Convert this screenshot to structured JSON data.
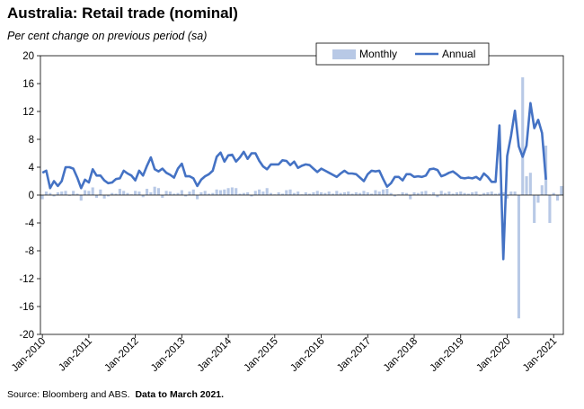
{
  "title": "Australia: Retail trade (nominal)",
  "subtitle": "Per cent change on previous period (sa)",
  "source_text": "Source: Bloomberg and ABS.",
  "source_note": "Data to March 2021.",
  "colors": {
    "monthly": "#b8c9e6",
    "annual": "#4472c4",
    "axis": "#000000",
    "grid": "#d9d9d9"
  },
  "chart_data": {
    "type": "bar+line",
    "ylim": [
      -20,
      20
    ],
    "yticks": [
      20,
      16,
      12,
      8,
      4,
      0,
      -4,
      -8,
      -12,
      -16,
      -20
    ],
    "x_start": "Jan-2010",
    "x_end": "Mar-2021",
    "xticks": [
      "Jan-2010",
      "Jan-2011",
      "Jan-2012",
      "Jan-2013",
      "Jan-2014",
      "Jan-2015",
      "Jan-2016",
      "Jan-2017",
      "Jan-2018",
      "Jan-2019",
      "Jan-2020",
      "Jan-2021"
    ],
    "legend": {
      "position": "top-right",
      "entries": [
        "Monthly",
        "Annual"
      ]
    },
    "series": [
      {
        "name": "Monthly",
        "type": "bar",
        "values": [
          -0.6,
          0.5,
          0.3,
          -0.2,
          0.4,
          0.5,
          0.6,
          -0.1,
          0.6,
          0.2,
          -0.8,
          0.7,
          0.6,
          1.1,
          -0.4,
          0.8,
          -0.5,
          -0.2,
          0.3,
          0.2,
          0.9,
          0.6,
          0.3,
          0.1,
          0.6,
          0.5,
          -0.3,
          0.9,
          0.4,
          1.2,
          1.0,
          -0.4,
          0.6,
          0.5,
          0.2,
          0.3,
          0.7,
          -0.2,
          0.5,
          0.8,
          -0.6,
          0.4,
          0.6,
          0.2,
          0.3,
          0.8,
          0.7,
          0.8,
          1.0,
          1.1,
          1.0,
          0.2,
          0.3,
          0.4,
          -0.2,
          0.6,
          0.8,
          0.5,
          1.0,
          0.3,
          0.1,
          0.4,
          0.2,
          0.7,
          0.8,
          0.3,
          0.5,
          0.1,
          0.4,
          0.2,
          0.4,
          0.6,
          0.4,
          0.3,
          0.5,
          0.2,
          0.6,
          0.3,
          0.4,
          0.5,
          0.2,
          0.4,
          0.3,
          0.6,
          0.4,
          0.2,
          0.7,
          0.5,
          0.8,
          0.9,
          0.3,
          -0.2,
          0.1,
          0.4,
          0.3,
          -0.6,
          0.4,
          0.3,
          0.5,
          0.6,
          0.1,
          0.4,
          -0.3,
          0.6,
          0.3,
          0.5,
          0.2,
          0.4,
          0.5,
          0.3,
          0.2,
          0.4,
          0.5,
          -0.1,
          0.3,
          0.4,
          0.5,
          0.2,
          0.3,
          0.4,
          -0.5,
          0.5,
          0.5,
          -17.7,
          16.9,
          2.7,
          3.2,
          -4.0,
          -1.1,
          1.4,
          7.1,
          -4.0,
          0.3,
          -0.8,
          1.3
        ]
      },
      {
        "name": "Annual",
        "type": "line",
        "values": [
          3.2,
          3.5,
          1.0,
          2.0,
          1.3,
          2.0,
          4.0,
          4.0,
          3.8,
          2.5,
          1.0,
          2.2,
          1.8,
          3.7,
          2.8,
          2.8,
          2.1,
          1.7,
          1.8,
          2.3,
          2.4,
          3.5,
          3.1,
          2.8,
          2.1,
          3.5,
          2.8,
          4.2,
          5.4,
          3.7,
          3.4,
          3.8,
          3.2,
          2.9,
          2.5,
          3.8,
          4.5,
          2.7,
          2.7,
          2.4,
          1.3,
          2.2,
          2.7,
          3.0,
          3.5,
          5.5,
          6.1,
          4.8,
          5.7,
          5.8,
          4.8,
          5.4,
          6.2,
          5.2,
          6.0,
          6.0,
          4.9,
          4.1,
          3.7,
          4.4,
          4.4,
          4.4,
          5.0,
          4.9,
          4.3,
          4.8,
          3.9,
          4.2,
          4.4,
          4.3,
          3.8,
          3.3,
          3.8,
          3.5,
          3.2,
          2.9,
          2.6,
          3.1,
          3.5,
          3.1,
          3.1,
          3.0,
          2.5,
          2.0,
          3.0,
          3.5,
          3.4,
          3.5,
          2.3,
          1.2,
          1.7,
          2.6,
          2.6,
          2.1,
          3.0,
          3.0,
          2.6,
          2.7,
          2.6,
          2.8,
          3.7,
          3.8,
          3.6,
          2.7,
          2.9,
          3.2,
          3.4,
          3.0,
          2.5,
          2.4,
          2.5,
          2.4,
          2.6,
          2.2,
          3.1,
          2.6,
          1.9,
          1.9,
          10.0,
          -9.2,
          5.6,
          8.5,
          12.1,
          7.0,
          5.5,
          7.1,
          13.2,
          9.6,
          10.8,
          8.9,
          2.2
        ]
      }
    ]
  }
}
